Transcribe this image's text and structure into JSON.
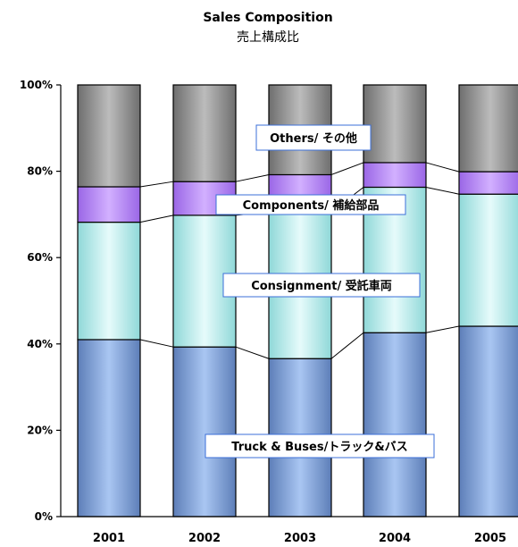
{
  "chart_data": {
    "type": "bar",
    "stacked": true,
    "percent": true,
    "title": "Sales Composition",
    "subtitle": "売上構成比",
    "categories": [
      "2001",
      "2002",
      "2003",
      "2004",
      "2005"
    ],
    "ylim": [
      0,
      100
    ],
    "yticks": [
      "0%",
      "20%",
      "40%",
      "60%",
      "80%",
      "100%"
    ],
    "grid": false,
    "series": [
      {
        "name": "Truck & Buses/トラック&バス",
        "values": [
          41,
          39.3,
          36.6,
          42.6,
          44.1
        ],
        "color": "#7e9ed4"
      },
      {
        "name": "Consignment/ 受託車両",
        "values": [
          27.2,
          30.5,
          34.0,
          33.7,
          30.6
        ],
        "color": "#b8ecec"
      },
      {
        "name": "Components/ 補給部品",
        "values": [
          8.2,
          7.8,
          8.6,
          5.7,
          5.2
        ],
        "color": "#b07ef0"
      },
      {
        "name": "Others/ その他",
        "values": [
          23.6,
          22.4,
          20.8,
          18.0,
          20.1
        ],
        "color": "#909090"
      }
    ]
  }
}
